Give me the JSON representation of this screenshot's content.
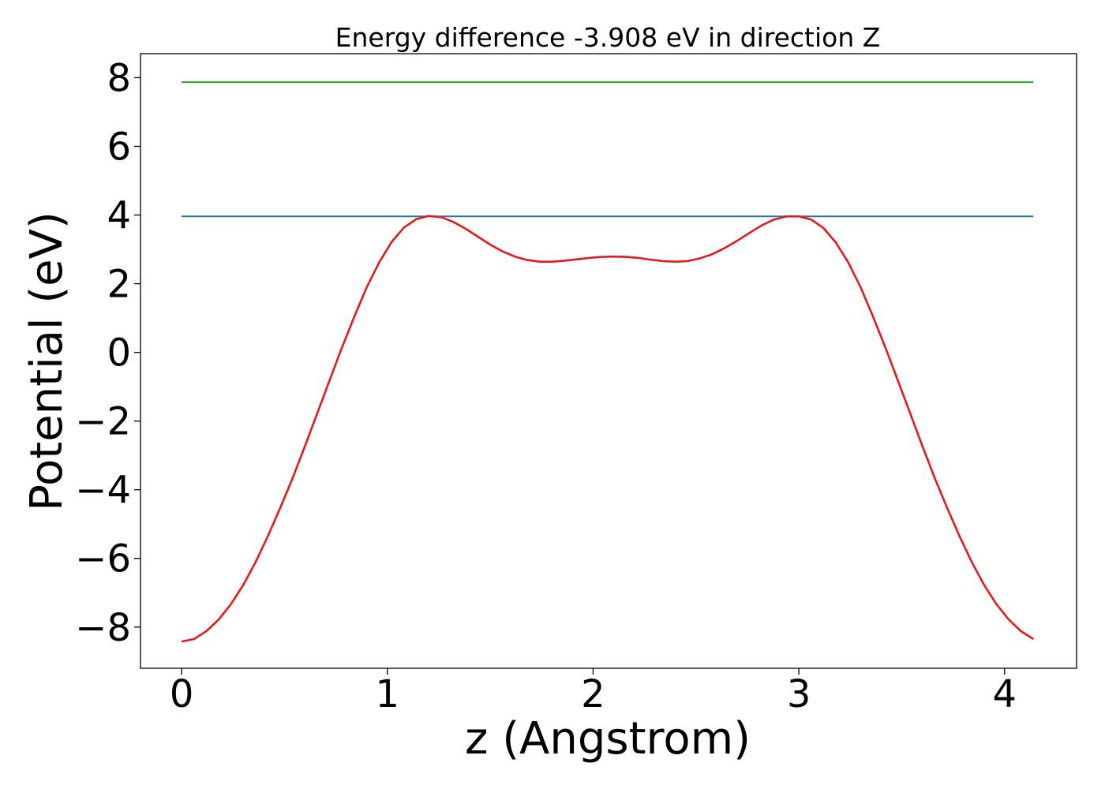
{
  "chart_data": {
    "type": "line",
    "title": "Energy difference -3.908 eV in direction Z",
    "xlabel": "z (Angstrom)",
    "ylabel": "Potential (eV)",
    "xlim": [
      -0.2,
      4.35
    ],
    "ylim": [
      -9.2,
      8.7
    ],
    "xticks": [
      0,
      1,
      2,
      3,
      4
    ],
    "xtick_labels": [
      "0",
      "1",
      "2",
      "3",
      "4"
    ],
    "yticks": [
      -8,
      -6,
      -4,
      -2,
      0,
      2,
      4,
      6,
      8
    ],
    "ytick_labels": [
      "−8",
      "−6",
      "−4",
      "−2",
      "0",
      "2",
      "4",
      "6",
      "8"
    ],
    "grid": false,
    "series": [
      {
        "color": "#2ca02c",
        "x": [
          0,
          4.14
        ],
        "y": [
          7.87,
          7.87
        ]
      },
      {
        "color": "#1f77b4",
        "x": [
          0,
          4.14
        ],
        "y": [
          3.96,
          3.96
        ]
      },
      {
        "color": "#e31a1c",
        "x": [
          0,
          0.06,
          0.12,
          0.18,
          0.24,
          0.3,
          0.36,
          0.42,
          0.48,
          0.54,
          0.6,
          0.66,
          0.72,
          0.78,
          0.84,
          0.9,
          0.96,
          1.02,
          1.08,
          1.14,
          1.2,
          1.26,
          1.32,
          1.38,
          1.44,
          1.5,
          1.56,
          1.62,
          1.68,
          1.74,
          1.8,
          1.86,
          1.92,
          1.98,
          2.04,
          2.1,
          2.16,
          2.22,
          2.28,
          2.34,
          2.4,
          2.46,
          2.52,
          2.58,
          2.64,
          2.7,
          2.76,
          2.82,
          2.88,
          2.94,
          3.0,
          3.06,
          3.12,
          3.18,
          3.24,
          3.3,
          3.36,
          3.42,
          3.48,
          3.54,
          3.6,
          3.66,
          3.72,
          3.78,
          3.84,
          3.9,
          3.96,
          4.02,
          4.08,
          4.14
        ],
        "y": [
          -8.42,
          -8.35,
          -8.12,
          -7.78,
          -7.33,
          -6.77,
          -6.1,
          -5.34,
          -4.52,
          -3.65,
          -2.72,
          -1.76,
          -0.8,
          0.15,
          1.05,
          1.9,
          2.62,
          3.21,
          3.63,
          3.88,
          3.97,
          3.94,
          3.8,
          3.6,
          3.37,
          3.14,
          2.94,
          2.79,
          2.69,
          2.64,
          2.64,
          2.67,
          2.71,
          2.75,
          2.78,
          2.79,
          2.78,
          2.75,
          2.7,
          2.66,
          2.64,
          2.66,
          2.74,
          2.86,
          3.04,
          3.25,
          3.48,
          3.7,
          3.87,
          3.96,
          3.96,
          3.87,
          3.62,
          3.2,
          2.62,
          1.9,
          1.05,
          0.15,
          -0.8,
          -1.76,
          -2.72,
          -3.65,
          -4.52,
          -5.34,
          -6.1,
          -6.77,
          -7.33,
          -7.78,
          -8.12,
          -8.35
        ]
      }
    ]
  }
}
